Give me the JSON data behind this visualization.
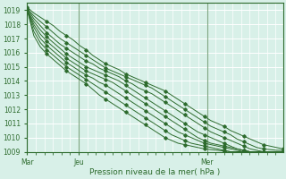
{
  "title": "",
  "xlabel": "Pression niveau de la mer( hPa )",
  "ylabel": "",
  "bg_color": "#d8f0e8",
  "grid_color": "#ffffff",
  "line_color": "#2d6b2d",
  "tick_color": "#2d6b2d",
  "label_color": "#2d6b2d",
  "ylim": [
    1009,
    1019.5
  ],
  "yticks": [
    1009,
    1010,
    1011,
    1012,
    1013,
    1014,
    1015,
    1016,
    1017,
    1018,
    1019
  ],
  "xtick_labels": [
    "Mar",
    "Jeu",
    "Mer"
  ],
  "xtick_positions": [
    0,
    48,
    168
  ],
  "total_points": 240,
  "lines": [
    [
      1019.2,
      1018.8,
      1018.5,
      1018.2,
      1017.9,
      1017.5,
      1017.2,
      1016.9,
      1016.5,
      1016.2,
      1015.8,
      1015.5,
      1015.2,
      1015.0,
      1014.8,
      1014.5,
      1014.3,
      1014.1,
      1013.9,
      1013.7,
      1013.5,
      1013.3,
      1013.0,
      1012.7,
      1012.4,
      1012.1,
      1011.8,
      1011.5,
      1011.2,
      1011.0,
      1010.8,
      1010.5,
      1010.3,
      1010.1,
      1009.9,
      1009.7,
      1009.5,
      1009.4,
      1009.3,
      1009.2
    ],
    [
      1019.1,
      1018.6,
      1018.2,
      1017.8,
      1017.4,
      1017.0,
      1016.7,
      1016.4,
      1016.1,
      1015.8,
      1015.5,
      1015.2,
      1014.9,
      1014.7,
      1014.5,
      1014.3,
      1014.1,
      1013.9,
      1013.7,
      1013.5,
      1013.2,
      1012.9,
      1012.6,
      1012.3,
      1012.0,
      1011.7,
      1011.4,
      1011.1,
      1010.8,
      1010.6,
      1010.4,
      1010.2,
      1009.9,
      1009.7,
      1009.5,
      1009.3,
      1009.2,
      1009.15,
      1009.1,
      1009.1
    ],
    [
      1019.1,
      1018.4,
      1017.9,
      1017.4,
      1017.0,
      1016.6,
      1016.3,
      1016.0,
      1015.7,
      1015.4,
      1015.2,
      1014.9,
      1014.7,
      1014.5,
      1014.3,
      1014.0,
      1013.8,
      1013.5,
      1013.3,
      1013.1,
      1012.8,
      1012.5,
      1012.2,
      1011.9,
      1011.6,
      1011.3,
      1011.0,
      1010.7,
      1010.4,
      1010.2,
      1010.0,
      1009.8,
      1009.6,
      1009.4,
      1009.2,
      1009.1,
      1009.0,
      1009.0,
      1009.0,
      1009.0
    ],
    [
      1019.0,
      1018.2,
      1017.6,
      1017.1,
      1016.7,
      1016.3,
      1015.9,
      1015.6,
      1015.3,
      1015.0,
      1014.8,
      1014.6,
      1014.4,
      1014.2,
      1014.0,
      1013.7,
      1013.4,
      1013.1,
      1012.8,
      1012.5,
      1012.2,
      1011.9,
      1011.6,
      1011.3,
      1011.0,
      1010.7,
      1010.4,
      1010.2,
      1010.0,
      1009.8,
      1009.6,
      1009.4,
      1009.2,
      1009.1,
      1009.0,
      1009.0,
      1009.0,
      1009.0,
      1009.0,
      1009.0
    ],
    [
      1019.0,
      1018.0,
      1017.3,
      1016.8,
      1016.4,
      1016.0,
      1015.6,
      1015.3,
      1015.0,
      1014.7,
      1014.5,
      1014.3,
      1014.1,
      1013.9,
      1013.6,
      1013.3,
      1013.0,
      1012.7,
      1012.4,
      1012.1,
      1011.8,
      1011.5,
      1011.2,
      1010.9,
      1010.6,
      1010.3,
      1010.0,
      1009.8,
      1009.6,
      1009.5,
      1009.4,
      1009.3,
      1009.2,
      1009.1,
      1009.0,
      1009.0,
      1009.0,
      1009.0,
      1009.0,
      1009.0
    ],
    [
      1019.0,
      1017.8,
      1017.0,
      1016.5,
      1016.1,
      1015.7,
      1015.3,
      1015.0,
      1014.7,
      1014.4,
      1014.2,
      1013.9,
      1013.7,
      1013.4,
      1013.1,
      1012.8,
      1012.5,
      1012.2,
      1011.9,
      1011.6,
      1011.3,
      1011.0,
      1010.7,
      1010.4,
      1010.2,
      1010.0,
      1009.8,
      1009.6,
      1009.5,
      1009.4,
      1009.3,
      1009.2,
      1009.1,
      1009.0,
      1009.0,
      1009.0,
      1009.0,
      1009.0,
      1009.0,
      1009.0
    ],
    [
      1019.0,
      1017.5,
      1016.7,
      1016.2,
      1015.8,
      1015.4,
      1015.0,
      1014.7,
      1014.4,
      1014.1,
      1013.8,
      1013.5,
      1013.2,
      1012.9,
      1012.6,
      1012.3,
      1012.0,
      1011.7,
      1011.4,
      1011.1,
      1010.8,
      1010.5,
      1010.2,
      1010.0,
      1009.8,
      1009.6,
      1009.5,
      1009.4,
      1009.3,
      1009.2,
      1009.1,
      1009.0,
      1009.0,
      1009.0,
      1009.0,
      1009.0,
      1009.0,
      1009.0,
      1009.0,
      1009.0
    ],
    [
      1019.0,
      1017.2,
      1016.4,
      1015.9,
      1015.5,
      1015.1,
      1014.7,
      1014.4,
      1014.1,
      1013.8,
      1013.4,
      1013.0,
      1012.7,
      1012.4,
      1012.1,
      1011.8,
      1011.5,
      1011.2,
      1010.9,
      1010.6,
      1010.3,
      1010.0,
      1009.8,
      1009.6,
      1009.5,
      1009.4,
      1009.3,
      1009.2,
      1009.15,
      1009.1,
      1009.05,
      1009.0,
      1009.0,
      1009.0,
      1009.0,
      1009.0,
      1009.0,
      1009.0,
      1009.0,
      1009.0
    ]
  ]
}
